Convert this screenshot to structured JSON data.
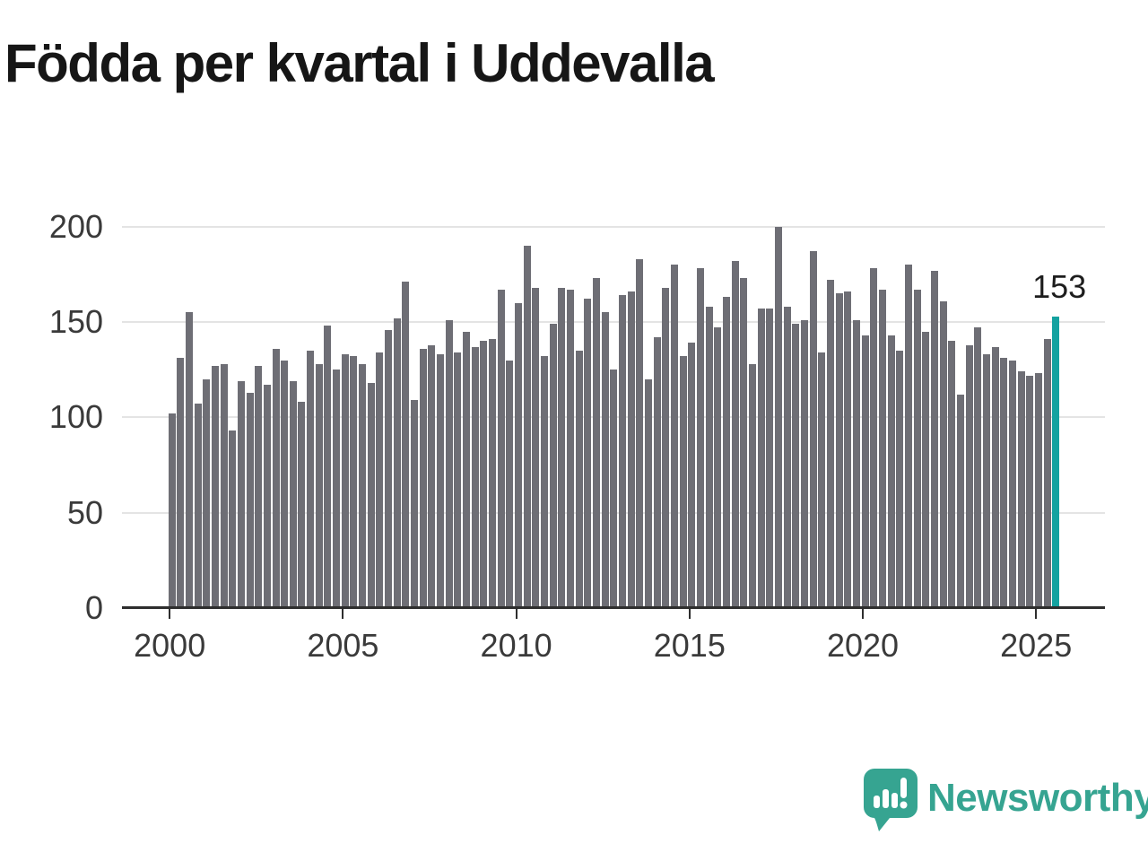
{
  "title": "Födda per kvartal i Uddevalla",
  "annotation": {
    "label": "153"
  },
  "branding": {
    "name": "Newsworthy",
    "icon": "newsworthy-speech-bubble-bar-chart-icon",
    "color": "#36a491"
  },
  "colors": {
    "background": "#ffffff",
    "bar": "#6e6e75",
    "highlight": "#14a2a0",
    "gridline": "#e4e4e4",
    "axis_line": "#2e2e2e",
    "axis_text": "#3a3a3a",
    "title_text": "#161616",
    "annotation_text": "#1d1d1d"
  },
  "chart_data": {
    "type": "bar",
    "title": "Födda per kvartal i Uddevalla",
    "xlabel": "",
    "ylabel": "",
    "frequency": "quarterly",
    "start_period": "2000 Q1",
    "end_period": "2025 Q3",
    "x_tick_labels": [
      "2000",
      "2005",
      "2010",
      "2015",
      "2020",
      "2025"
    ],
    "y_ticks": [
      0,
      50,
      100,
      150,
      200
    ],
    "y_tick_labels": [
      "0",
      "50",
      "100",
      "150",
      "200"
    ],
    "ylim": [
      0,
      213
    ],
    "grid": "horizontal",
    "legend": "none",
    "values": [
      102,
      131,
      155,
      107,
      120,
      127,
      128,
      93,
      119,
      113,
      127,
      117,
      136,
      130,
      119,
      108,
      135,
      128,
      148,
      125,
      133,
      132,
      128,
      118,
      134,
      146,
      152,
      171,
      109,
      136,
      138,
      133,
      151,
      134,
      145,
      137,
      140,
      141,
      167,
      130,
      160,
      190,
      168,
      132,
      149,
      168,
      167,
      135,
      162,
      173,
      155,
      125,
      164,
      166,
      183,
      120,
      142,
      168,
      180,
      132,
      139,
      178,
      158,
      147,
      163,
      182,
      173,
      128,
      157,
      157,
      200,
      158,
      149,
      151,
      187,
      134,
      172,
      165,
      166,
      151,
      143,
      178,
      167,
      143,
      135,
      180,
      167,
      145,
      177,
      161,
      140,
      112,
      138,
      147,
      133,
      137,
      131,
      130,
      124,
      122,
      123,
      141,
      153
    ],
    "highlight_index": 102,
    "highlight_value_label": "153"
  }
}
